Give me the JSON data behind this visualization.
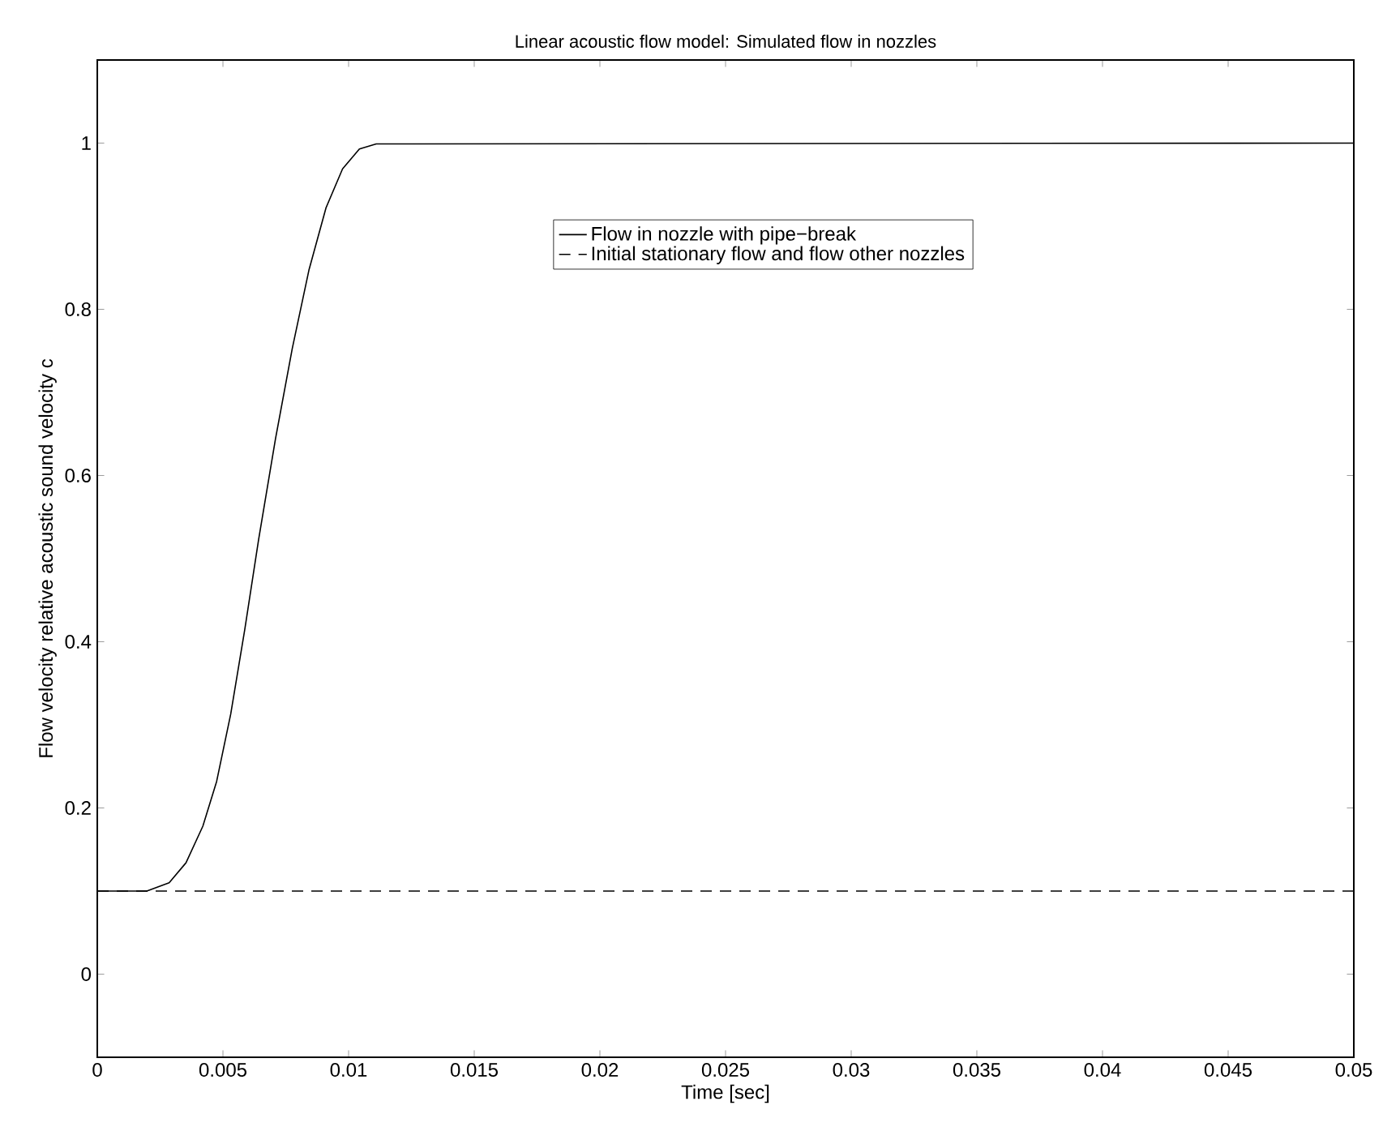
{
  "chart_data": {
    "type": "line",
    "title": "Linear acoustic flow model: Simulated flow in nozzles",
    "xlabel": "Time [sec]",
    "ylabel": "Flow velocity relative acoustic sound velocity c",
    "xlim": [
      0,
      0.05
    ],
    "ylim": [
      -0.1,
      1.1
    ],
    "xticks": [
      0,
      0.005,
      0.01,
      0.015,
      0.02,
      0.025,
      0.03,
      0.035,
      0.04,
      0.045,
      0.05
    ],
    "yticks": [
      0,
      0.2,
      0.4,
      0.6,
      0.8,
      1
    ],
    "legend": "top",
    "grid": false,
    "series": [
      {
        "name": "Flow in nozzle with pipe−break",
        "color": "#000000",
        "line_style": "solid",
        "x": [
          0,
          0.00197,
          0.00286,
          0.00353,
          0.0042,
          0.00475,
          0.00531,
          0.00587,
          0.00642,
          0.00709,
          0.00776,
          0.00842,
          0.0091,
          0.00976,
          0.01043,
          0.0111,
          0.05
        ],
        "values": [
          0.1,
          0.1,
          0.11,
          0.134,
          0.178,
          0.232,
          0.313,
          0.415,
          0.523,
          0.644,
          0.753,
          0.847,
          0.922,
          0.969,
          0.993,
          0.999,
          1
        ]
      },
      {
        "name": "Initial stationary flow and flow other nozzles",
        "color": "#000000",
        "line_style": "dashed",
        "x": [
          0,
          0.05
        ],
        "values": [
          0.1,
          0.1
        ]
      }
    ]
  }
}
